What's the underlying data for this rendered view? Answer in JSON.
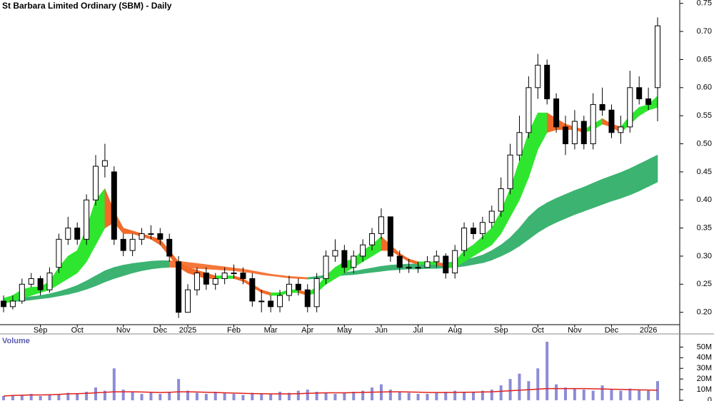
{
  "chart_data": {
    "type": "candlestick",
    "title": "St Barbara Limited Ordinary (SBM) - Daily",
    "categories": [
      null,
      null,
      null,
      null,
      "Sep",
      null,
      null,
      null,
      "Oct",
      null,
      null,
      null,
      null,
      "Nov",
      null,
      null,
      null,
      "Dec",
      null,
      null,
      "2025",
      null,
      null,
      null,
      null,
      "Feb",
      null,
      null,
      null,
      "Mar",
      null,
      null,
      null,
      "Apr",
      null,
      null,
      null,
      "May",
      null,
      null,
      null,
      "Jun",
      null,
      null,
      null,
      "Jul",
      null,
      null,
      null,
      "Aug",
      null,
      null,
      null,
      null,
      "Sep",
      null,
      null,
      null,
      "Oct",
      null,
      null,
      null,
      "Nov",
      null,
      null,
      null,
      "Dec",
      null,
      null,
      null,
      "2026",
      null
    ],
    "open": [
      0.22,
      0.21,
      0.22,
      0.25,
      0.26,
      0.24,
      0.28,
      0.33,
      0.35,
      0.33,
      0.4,
      0.46,
      0.45,
      0.33,
      0.31,
      0.33,
      0.34,
      0.34,
      0.33,
      0.29,
      0.2,
      0.24,
      0.27,
      0.25,
      0.26,
      0.27,
      0.27,
      0.26,
      0.22,
      0.22,
      0.21,
      0.23,
      0.25,
      0.24,
      0.21,
      0.26,
      0.3,
      0.31,
      0.28,
      0.3,
      0.32,
      0.34,
      0.37,
      0.3,
      0.28,
      0.28,
      0.28,
      0.29,
      0.3,
      0.27,
      0.31,
      0.35,
      0.34,
      0.36,
      0.38,
      0.42,
      0.48,
      0.52,
      0.6,
      0.64,
      0.58,
      0.53,
      0.5,
      0.54,
      0.5,
      0.57,
      0.56,
      0.52,
      0.53,
      0.6,
      0.58,
      0.6
    ],
    "high": [
      0.23,
      0.23,
      0.26,
      0.27,
      0.265,
      0.28,
      0.34,
      0.37,
      0.36,
      0.41,
      0.48,
      0.5,
      0.46,
      0.34,
      0.34,
      0.35,
      0.355,
      0.35,
      0.34,
      0.3,
      0.25,
      0.28,
      0.28,
      0.27,
      0.28,
      0.285,
      0.28,
      0.27,
      0.24,
      0.23,
      0.24,
      0.265,
      0.26,
      0.25,
      0.27,
      0.31,
      0.33,
      0.32,
      0.31,
      0.33,
      0.35,
      0.385,
      0.37,
      0.31,
      0.295,
      0.29,
      0.3,
      0.31,
      0.305,
      0.32,
      0.36,
      0.36,
      0.37,
      0.39,
      0.44,
      0.5,
      0.55,
      0.62,
      0.66,
      0.65,
      0.59,
      0.55,
      0.56,
      0.55,
      0.59,
      0.6,
      0.57,
      0.55,
      0.63,
      0.62,
      0.6,
      0.725
    ],
    "low": [
      0.2,
      0.205,
      0.215,
      0.245,
      0.23,
      0.235,
      0.27,
      0.32,
      0.32,
      0.32,
      0.39,
      0.44,
      0.32,
      0.3,
      0.3,
      0.32,
      0.33,
      0.32,
      0.29,
      0.19,
      0.2,
      0.23,
      0.24,
      0.24,
      0.25,
      0.26,
      0.25,
      0.21,
      0.2,
      0.2,
      0.2,
      0.22,
      0.23,
      0.2,
      0.2,
      0.25,
      0.29,
      0.27,
      0.27,
      0.29,
      0.31,
      0.33,
      0.29,
      0.27,
      0.27,
      0.27,
      0.28,
      0.28,
      0.26,
      0.26,
      0.3,
      0.33,
      0.33,
      0.35,
      0.37,
      0.41,
      0.47,
      0.51,
      0.58,
      0.57,
      0.52,
      0.48,
      0.49,
      0.49,
      0.49,
      0.55,
      0.51,
      0.5,
      0.52,
      0.57,
      0.56,
      0.54
    ],
    "close": [
      0.21,
      0.22,
      0.25,
      0.26,
      0.24,
      0.27,
      0.33,
      0.35,
      0.33,
      0.4,
      0.46,
      0.47,
      0.33,
      0.31,
      0.33,
      0.34,
      0.34,
      0.33,
      0.3,
      0.2,
      0.24,
      0.27,
      0.25,
      0.26,
      0.27,
      0.27,
      0.26,
      0.22,
      0.22,
      0.21,
      0.23,
      0.25,
      0.24,
      0.21,
      0.26,
      0.3,
      0.31,
      0.28,
      0.3,
      0.32,
      0.34,
      0.37,
      0.3,
      0.28,
      0.28,
      0.28,
      0.29,
      0.3,
      0.27,
      0.31,
      0.35,
      0.34,
      0.36,
      0.38,
      0.42,
      0.48,
      0.52,
      0.6,
      0.64,
      0.58,
      0.53,
      0.5,
      0.54,
      0.5,
      0.57,
      0.56,
      0.52,
      0.53,
      0.6,
      0.58,
      0.57,
      0.71
    ],
    "short_ribbon": {
      "upper": [
        0.225,
        0.23,
        0.24,
        0.245,
        0.245,
        0.255,
        0.28,
        0.3,
        0.31,
        0.35,
        0.4,
        0.42,
        0.38,
        0.35,
        0.345,
        0.34,
        0.335,
        0.33,
        0.31,
        0.29,
        0.28,
        0.275,
        0.27,
        0.265,
        0.265,
        0.265,
        0.26,
        0.25,
        0.24,
        0.235,
        0.235,
        0.24,
        0.24,
        0.235,
        0.245,
        0.265,
        0.28,
        0.29,
        0.295,
        0.31,
        0.32,
        0.335,
        0.32,
        0.305,
        0.295,
        0.29,
        0.29,
        0.29,
        0.285,
        0.29,
        0.31,
        0.32,
        0.335,
        0.35,
        0.38,
        0.42,
        0.47,
        0.52,
        0.555,
        0.555,
        0.545,
        0.535,
        0.53,
        0.525,
        0.535,
        0.545,
        0.535,
        0.53,
        0.55,
        0.565,
        0.57,
        0.585
      ],
      "lower": [
        0.215,
        0.22,
        0.225,
        0.23,
        0.235,
        0.24,
        0.25,
        0.26,
        0.27,
        0.29,
        0.32,
        0.35,
        0.36,
        0.34,
        0.34,
        0.335,
        0.33,
        0.32,
        0.3,
        0.28,
        0.27,
        0.265,
        0.26,
        0.26,
        0.26,
        0.26,
        0.255,
        0.245,
        0.235,
        0.23,
        0.23,
        0.235,
        0.235,
        0.23,
        0.235,
        0.25,
        0.26,
        0.27,
        0.28,
        0.29,
        0.3,
        0.31,
        0.31,
        0.3,
        0.29,
        0.285,
        0.285,
        0.285,
        0.28,
        0.28,
        0.29,
        0.3,
        0.31,
        0.32,
        0.34,
        0.37,
        0.4,
        0.44,
        0.49,
        0.52,
        0.525,
        0.525,
        0.525,
        0.52,
        0.525,
        0.535,
        0.53,
        0.52,
        0.535,
        0.55,
        0.56,
        0.565
      ],
      "up_color": "#2fe62f",
      "down_color": "#f26a2a"
    },
    "long_ribbon": {
      "upper": [
        0.222,
        0.224,
        0.226,
        0.228,
        0.23,
        0.233,
        0.237,
        0.242,
        0.248,
        0.256,
        0.265,
        0.274,
        0.28,
        0.284,
        0.287,
        0.289,
        0.291,
        0.292,
        0.292,
        0.291,
        0.289,
        0.287,
        0.285,
        0.283,
        0.281,
        0.279,
        0.277,
        0.274,
        0.271,
        0.268,
        0.266,
        0.264,
        0.263,
        0.262,
        0.264,
        0.266,
        0.269,
        0.271,
        0.273,
        0.276,
        0.279,
        0.282,
        0.284,
        0.285,
        0.286,
        0.286,
        0.287,
        0.287,
        0.288,
        0.29,
        0.293,
        0.297,
        0.302,
        0.31,
        0.32,
        0.333,
        0.35,
        0.37,
        0.385,
        0.395,
        0.403,
        0.41,
        0.417,
        0.423,
        0.43,
        0.437,
        0.443,
        0.449,
        0.456,
        0.464,
        0.472,
        0.48
      ],
      "lower": [
        0.218,
        0.219,
        0.22,
        0.222,
        0.224,
        0.226,
        0.229,
        0.232,
        0.236,
        0.241,
        0.247,
        0.254,
        0.26,
        0.265,
        0.27,
        0.274,
        0.277,
        0.279,
        0.28,
        0.28,
        0.279,
        0.278,
        0.277,
        0.276,
        0.275,
        0.274,
        0.272,
        0.27,
        0.267,
        0.265,
        0.263,
        0.261,
        0.26,
        0.259,
        0.26,
        0.262,
        0.264,
        0.266,
        0.267,
        0.269,
        0.271,
        0.273,
        0.275,
        0.276,
        0.277,
        0.277,
        0.278,
        0.278,
        0.279,
        0.28,
        0.282,
        0.285,
        0.288,
        0.293,
        0.3,
        0.308,
        0.318,
        0.33,
        0.342,
        0.352,
        0.36,
        0.367,
        0.374,
        0.38,
        0.386,
        0.392,
        0.398,
        0.403,
        0.409,
        0.416,
        0.424,
        0.432
      ],
      "up_color": "#3cb371",
      "down_color": "#f4773a"
    },
    "ylim": [
      0.178,
      0.756
    ],
    "yticks": [
      {
        "value": 0.2,
        "label": "0.20"
      },
      0.25,
      {
        "value": 0.3,
        "label": "0.30"
      },
      0.35,
      {
        "value": 0.4,
        "label": "0.40"
      },
      0.45,
      {
        "value": 0.5,
        "label": "0.50"
      },
      0.55,
      {
        "value": 0.6,
        "label": "0.60"
      },
      0.65,
      {
        "value": 0.7,
        "label": "0.70"
      },
      0.75
    ],
    "volume": {
      "label": "Volume",
      "values": [
        4,
        5,
        5,
        6,
        4,
        5,
        6,
        7,
        6,
        8,
        12,
        9,
        30,
        10,
        8,
        6,
        7,
        6,
        8,
        20,
        9,
        7,
        6,
        8,
        7,
        6,
        5,
        7,
        6,
        6,
        8,
        7,
        9,
        10,
        8,
        7,
        6,
        7,
        8,
        9,
        12,
        15,
        10,
        8,
        7,
        6,
        6,
        7,
        8,
        9,
        8,
        8,
        9,
        10,
        14,
        20,
        25,
        18,
        30,
        55,
        15,
        12,
        11,
        10,
        9,
        14,
        10,
        9,
        11,
        10,
        9,
        18
      ],
      "average": [
        4,
        4.5,
        4.8,
        5,
        5,
        5.2,
        5.5,
        6,
        6.2,
        6.5,
        7,
        7.5,
        8,
        8,
        8,
        7.8,
        7.5,
        7.3,
        7.5,
        8,
        8,
        7.8,
        7.5,
        7.3,
        7,
        6.8,
        6.5,
        6.3,
        6.2,
        6,
        6,
        6,
        6.2,
        6.5,
        6.8,
        7,
        7,
        7,
        7.2,
        7.4,
        7.6,
        7.8,
        8,
        8,
        7.8,
        7.6,
        7.4,
        7.3,
        7.3,
        7.4,
        7.5,
        7.6,
        7.8,
        8,
        8.5,
        9,
        9.5,
        10,
        10.5,
        11,
        11,
        11,
        11,
        11,
        10.8,
        10.6,
        10.4,
        10.2,
        10,
        9.8,
        9.6,
        9.5
      ],
      "color": "#8c8cd8",
      "average_color": "#e0201c",
      "ylim": [
        0,
        61
      ],
      "yticks": [
        0,
        {
          "value": 10,
          "label": "10M"
        },
        {
          "value": 20,
          "label": "20M"
        },
        {
          "value": 30,
          "label": "30M"
        },
        {
          "value": 40,
          "label": "40M"
        },
        {
          "value": 50,
          "label": "50M"
        }
      ]
    }
  }
}
